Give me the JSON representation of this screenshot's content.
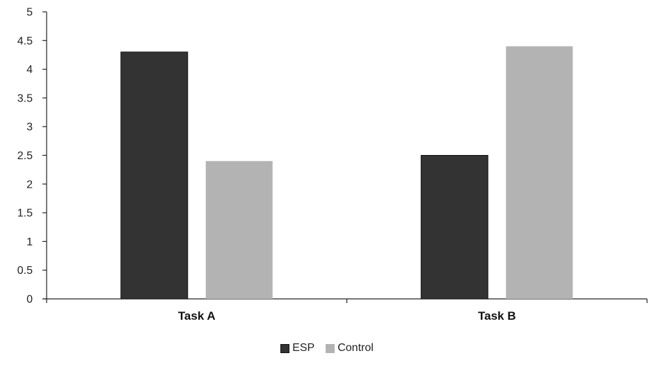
{
  "chart_data": {
    "type": "bar",
    "categories": [
      "Task A",
      "Task B"
    ],
    "series": [
      {
        "name": "ESP",
        "values": [
          4.3,
          2.5
        ],
        "color": "#333333"
      },
      {
        "name": "Control",
        "values": [
          2.4,
          4.4
        ],
        "color": "#b3b3b3"
      }
    ],
    "title": "",
    "xlabel": "",
    "ylabel": "",
    "ylim": [
      0,
      5
    ],
    "yticks": [
      "0",
      "0.5",
      "1",
      "1.5",
      "2",
      "2.5",
      "3",
      "3.5",
      "4",
      "4.5",
      "5"
    ],
    "grid": false,
    "legend_position": "bottom"
  }
}
